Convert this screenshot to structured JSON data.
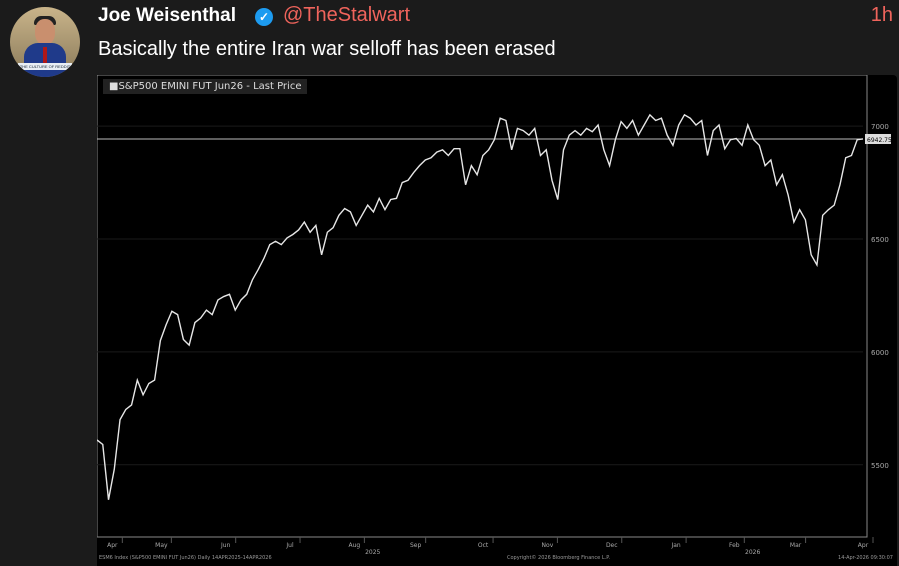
{
  "tweet": {
    "name": "Joe Weisenthal",
    "handle": "@TheStalwart",
    "time": "1h",
    "text": "Basically the entire Iran war selloff has been erased",
    "avatar_banner": "THE CULTURE OF REDDIT"
  },
  "colors": {
    "handle": "#f0645c",
    "verified": "#1d9bf0",
    "line": "#e6e6e6"
  },
  "chart_data": {
    "type": "line",
    "title": "S&P500 EMINI FUT Jun26 - Last Price",
    "ylim": [
      5180,
      7160
    ],
    "xlim": [
      0,
      250
    ],
    "yticks": [
      5500,
      6000,
      6500,
      7000
    ],
    "last_price_label": "6942.75",
    "xticks": [
      {
        "label": "Apr",
        "x": 5
      },
      {
        "label": "May",
        "x": 21
      },
      {
        "label": "Jun",
        "x": 42
      },
      {
        "label": "Jul",
        "x": 63
      },
      {
        "label": "Aug",
        "x": 84
      },
      {
        "label": "Sep",
        "x": 104
      },
      {
        "label": "Oct",
        "x": 126
      },
      {
        "label": "Nov",
        "x": 147
      },
      {
        "label": "Dec",
        "x": 168
      },
      {
        "label": "Jan",
        "x": 189
      },
      {
        "label": "Feb",
        "x": 208
      },
      {
        "label": "Mar",
        "x": 228
      },
      {
        "label": "Apr",
        "x": 250
      }
    ],
    "year_labels": [
      {
        "label": "2025",
        "x": 90
      },
      {
        "label": "2026",
        "x": 214
      }
    ],
    "footer_left": "ESM6 Index (S&P500 EMINI FUT Jun26) Daily 14APR2025-14APR2026",
    "footer_center": "Copyright© 2026 Bloomberg Finance L.P.",
    "footer_right": "14-Apr-2026 09:30:07",
    "values": [
      5610,
      5590,
      5345,
      5480,
      5700,
      5745,
      5765,
      5875,
      5810,
      5860,
      5875,
      6050,
      6120,
      6180,
      6165,
      6055,
      6030,
      6130,
      6150,
      6185,
      6165,
      6230,
      6245,
      6255,
      6185,
      6230,
      6255,
      6320,
      6365,
      6415,
      6475,
      6490,
      6475,
      6505,
      6520,
      6540,
      6575,
      6530,
      6560,
      6430,
      6530,
      6550,
      6605,
      6635,
      6620,
      6560,
      6605,
      6650,
      6620,
      6680,
      6630,
      6675,
      6680,
      6750,
      6760,
      6795,
      6825,
      6850,
      6860,
      6885,
      6895,
      6870,
      6900,
      6900,
      6740,
      6825,
      6785,
      6870,
      6895,
      6940,
      7035,
      7025,
      6895,
      6990,
      6980,
      6960,
      6990,
      6870,
      6895,
      6760,
      6675,
      6895,
      6960,
      6980,
      6960,
      6990,
      6975,
      7005,
      6895,
      6825,
      6940,
      7020,
      6990,
      7025,
      6960,
      7005,
      7050,
      7025,
      7035,
      6960,
      6915,
      7005,
      7050,
      7035,
      7005,
      7025,
      6870,
      6980,
      7005,
      6900,
      6940,
      6945,
      6915,
      7005,
      6940,
      6915,
      6825,
      6850,
      6740,
      6785,
      6695,
      6575,
      6630,
      6585,
      6430,
      6385,
      6605,
      6630,
      6650,
      6740,
      6860,
      6870,
      6940,
      6943
    ]
  }
}
